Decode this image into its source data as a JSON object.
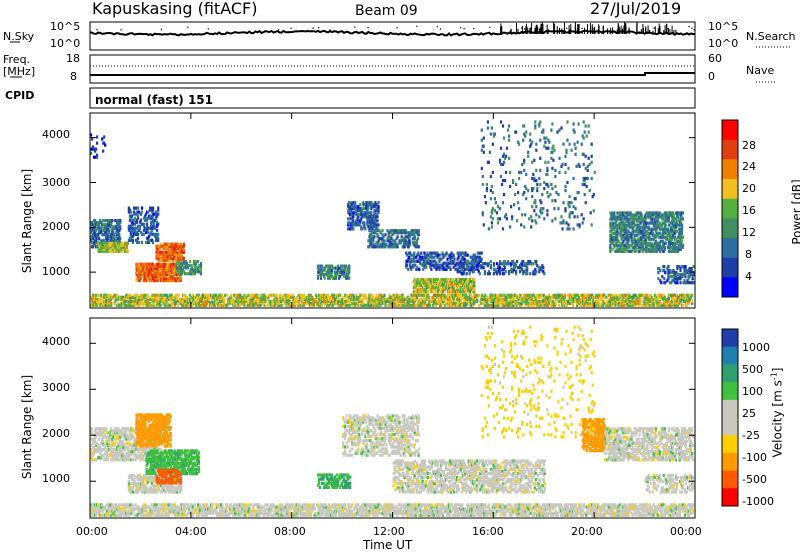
{
  "header": {
    "station": "Kapuskasing (fitACF)",
    "beam": "Beam 09",
    "date": "27/Jul/2019"
  },
  "top_panel": {
    "left_label": "N.Sky",
    "right_label": "N.Search",
    "left_ticks": [
      "10^5",
      "10^0"
    ],
    "right_ticks": [
      "10^5",
      "10^0"
    ]
  },
  "freq_panel": {
    "left_label_1": "Freq.",
    "left_label_2": "[MHz]",
    "right_label": "Nave",
    "left_ticks": [
      "18",
      "8"
    ],
    "right_ticks": [
      "60",
      "0"
    ]
  },
  "cpid_panel": {
    "label": "CPID",
    "text": "normal (fast) 151"
  },
  "colors": {
    "power_scale": [
      "#0000ff",
      "#1f3fa8",
      "#2f6fa0",
      "#3f8f60",
      "#55b040",
      "#f0c020",
      "#f08000",
      "#e04010",
      "#ff0000"
    ],
    "velocity_scale": [
      "#ff0000",
      "#ff5a00",
      "#ff9a00",
      "#ffd000",
      "#c8c8c0",
      "#c8c8c0",
      "#40c040",
      "#2f9f6f",
      "#1f7faf",
      "#1f3fa8"
    ]
  },
  "power_colorbar": {
    "label": "Power [dB]",
    "ticks": [
      "28",
      "24",
      "20",
      "16",
      "12",
      "8",
      "4"
    ]
  },
  "velocity_colorbar": {
    "label": "Velocity [m s",
    "label_sup": "-1",
    "label_end": "]",
    "ticks": [
      "1000",
      "500",
      "100",
      "25",
      "-25",
      "-100",
      "-500",
      "-1000"
    ]
  },
  "chart_data": [
    {
      "type": "heatmap",
      "name": "power",
      "ylabel": "Slant Range [km]",
      "yticks": [
        "4000",
        "3000",
        "2000",
        "1000"
      ],
      "ylim": [
        200,
        4550
      ],
      "xlim_hours": [
        0,
        24
      ],
      "regions": [
        {
          "t0": 0.0,
          "t1": 24.0,
          "r0": 250,
          "r1": 550,
          "v": 20,
          "density": 0.55
        },
        {
          "t0": 0.0,
          "t1": 1.2,
          "r0": 1600,
          "r1": 2200,
          "v": 10,
          "density": 0.5
        },
        {
          "t0": 0.3,
          "t1": 1.5,
          "r0": 1500,
          "r1": 1700,
          "v": 20,
          "density": 0.7
        },
        {
          "t0": 1.5,
          "t1": 2.7,
          "r0": 1700,
          "r1": 2500,
          "v": 8,
          "density": 0.35
        },
        {
          "t0": 1.8,
          "t1": 3.6,
          "r0": 850,
          "r1": 1250,
          "v": 28,
          "density": 0.75
        },
        {
          "t0": 2.6,
          "t1": 3.7,
          "r0": 1300,
          "r1": 1700,
          "v": 28,
          "density": 0.6
        },
        {
          "t0": 3.4,
          "t1": 4.4,
          "r0": 1000,
          "r1": 1300,
          "v": 14,
          "density": 0.5
        },
        {
          "t0": 9.0,
          "t1": 10.3,
          "r0": 900,
          "r1": 1200,
          "v": 12,
          "density": 0.5
        },
        {
          "t0": 10.2,
          "t1": 11.4,
          "r0": 2000,
          "r1": 2600,
          "v": 8,
          "density": 0.4
        },
        {
          "t0": 11.0,
          "t1": 13.0,
          "r0": 1600,
          "r1": 2000,
          "v": 10,
          "density": 0.45
        },
        {
          "t0": 12.5,
          "t1": 15.5,
          "r0": 1100,
          "r1": 1500,
          "v": 8,
          "density": 0.35
        },
        {
          "t0": 12.8,
          "t1": 15.2,
          "r0": 600,
          "r1": 900,
          "v": 20,
          "density": 0.65
        },
        {
          "t0": 14.5,
          "t1": 18.0,
          "r0": 1000,
          "r1": 1300,
          "v": 8,
          "density": 0.3
        },
        {
          "t0": 20.6,
          "t1": 23.5,
          "r0": 1500,
          "r1": 2400,
          "v": 12,
          "density": 0.5
        },
        {
          "t0": 22.5,
          "t1": 24.0,
          "r0": 800,
          "r1": 1200,
          "v": 8,
          "density": 0.3
        },
        {
          "t0": 15.5,
          "t1": 20.0,
          "r0": 2000,
          "r1": 4400,
          "v": 10,
          "density": 0.05
        },
        {
          "t0": 0.0,
          "t1": 0.6,
          "r0": 3600,
          "r1": 4100,
          "v": 6,
          "density": 0.15
        }
      ]
    },
    {
      "type": "heatmap",
      "name": "velocity",
      "ylabel": "Slant Range [km]",
      "yticks": [
        "4000",
        "3000",
        "2000",
        "1000"
      ],
      "ylim": [
        200,
        4550
      ],
      "xlim_hours": [
        0,
        24
      ],
      "xticks": [
        "00:00",
        "04:00",
        "08:00",
        "12:00",
        "16:00",
        "20:00",
        "00:00"
      ],
      "xlabel": "Time UT",
      "regions": [
        {
          "t0": 0.0,
          "t1": 24.0,
          "r0": 250,
          "r1": 550,
          "v": 0,
          "density": 0.55
        },
        {
          "t0": 0.0,
          "t1": 2.8,
          "r0": 1500,
          "r1": 2200,
          "v": 0,
          "density": 0.45
        },
        {
          "t0": 1.8,
          "t1": 3.2,
          "r0": 1800,
          "r1": 2500,
          "v": -250,
          "density": 0.55
        },
        {
          "t0": 2.2,
          "t1": 4.3,
          "r0": 1200,
          "r1": 1700,
          "v": 80,
          "density": 0.55
        },
        {
          "t0": 1.5,
          "t1": 3.6,
          "r0": 800,
          "r1": 1200,
          "v": 0,
          "density": 0.5
        },
        {
          "t0": 2.6,
          "t1": 3.6,
          "r0": 1000,
          "r1": 1300,
          "v": -800,
          "density": 0.5
        },
        {
          "t0": 9.0,
          "t1": 10.3,
          "r0": 900,
          "r1": 1200,
          "v": 100,
          "density": 0.45
        },
        {
          "t0": 10.0,
          "t1": 13.0,
          "r0": 1600,
          "r1": 2500,
          "v": 0,
          "density": 0.35
        },
        {
          "t0": 12.0,
          "t1": 18.0,
          "r0": 800,
          "r1": 1500,
          "v": 0,
          "density": 0.4
        },
        {
          "t0": 19.5,
          "t1": 20.4,
          "r0": 1700,
          "r1": 2400,
          "v": -400,
          "density": 0.55
        },
        {
          "t0": 20.4,
          "t1": 24.0,
          "r0": 1500,
          "r1": 2200,
          "v": 0,
          "density": 0.45
        },
        {
          "t0": 22.0,
          "t1": 24.0,
          "r0": 800,
          "r1": 1200,
          "v": 0,
          "density": 0.3
        },
        {
          "t0": 15.5,
          "t1": 20.0,
          "r0": 2000,
          "r1": 4400,
          "v": -50,
          "density": 0.05
        }
      ]
    }
  ]
}
